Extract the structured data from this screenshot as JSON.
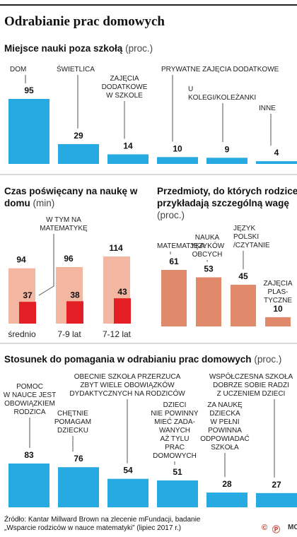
{
  "title": "Odrabianie prac domowych",
  "colors": {
    "blue": "#27a9e1",
    "salmon": "#e08a6b",
    "light_pink": "#f3b7a1",
    "red": "#e31e24"
  },
  "chart_data": [
    {
      "type": "bar",
      "title": "Miejsce nauki poza szkołą",
      "unit": "(proc.)",
      "categories": [
        "DOM",
        "ŚWIETLICA",
        "ZAJĘCIA DODATKOWE W SZKOLE",
        "PRYWATNE ZAJĘCIA DODATKOWE",
        "U KOLEGI/KOLEŻANKI",
        "INNE"
      ],
      "values": [
        95,
        29,
        14,
        10,
        9,
        4
      ]
    },
    {
      "type": "bar",
      "title": "Czas poświęcany na naukę w domu",
      "unit": "(min)",
      "categories": [
        "średnio",
        "7-9 lat",
        "7-12 lat"
      ],
      "series": [
        {
          "name": "",
          "values": [
            94,
            96,
            114
          ]
        },
        {
          "name": "W TYM NA MATEMATYKĘ",
          "values": [
            37,
            38,
            43
          ]
        }
      ]
    },
    {
      "type": "bar",
      "title": "Przedmioty, do których rodzice przykładają szczególną wagę",
      "unit": "(proc.)",
      "categories": [
        "MATEMATYKA",
        "NAUKA JĘZYKÓW OBCYCH",
        "JĘZYK POLSKI /CZYTANIE",
        "ZAJĘCIA PLASTYCZNE"
      ],
      "values": [
        61,
        53,
        45,
        10
      ]
    },
    {
      "type": "bar",
      "title": "Stosunek do pomagania w odrabianiu prac domowych",
      "unit": "(proc.)",
      "categories": [
        "POMOC W NAUCE JEST OBOWIĄZKIEM RODZICA",
        "CHĘTNIE POMAGAM DZIECKU",
        "OBECNIE SZKOŁA PRZERZUCA ZBYT WIELE OBOWIĄZKÓW DYDAKTYCZNYCH NA RODZICÓW",
        "DZIECI NIE POWINNY MIEĆ ZADAWANYCH AŻ TYLU PRAC DOMOWYCH",
        "ZA NAUKĘ DZIECKA W PEŁNI POWINNA ODPOWIADAĆ SZKOŁA",
        "WSPÓŁCZESNA SZKOŁA DOBRZE SOBIE RADZI Z UCZENIEM DZIECI"
      ],
      "values": [
        83,
        76,
        54,
        51,
        28,
        27
      ]
    }
  ],
  "source_line1": "Źródło: Kantar Millward Brown na zlecenie mFundacji, badanie",
  "source_line2": "„Wsparcie rodziców w nauce matematyki” (lipiec 2017 r.)",
  "logo_c": "©",
  "logo_p": "Ⓟ",
  "brand": "MC"
}
